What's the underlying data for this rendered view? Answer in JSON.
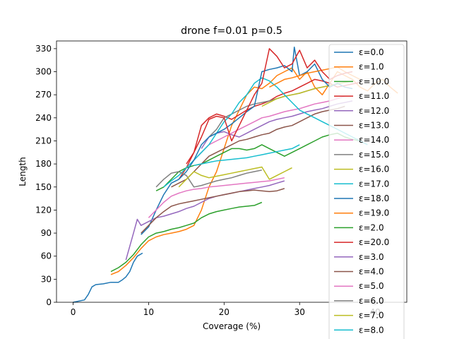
{
  "chart_data": {
    "type": "line",
    "title": "drone f=0.01 p=0.5",
    "xlabel": "Coverage (%)",
    "ylabel": "Length",
    "xlim": [
      -2.2,
      44.2
    ],
    "ylim": [
      0,
      340
    ],
    "xticks": [
      0,
      10,
      20,
      30,
      40
    ],
    "yticks": [
      0,
      30,
      60,
      90,
      120,
      150,
      180,
      210,
      240,
      270,
      300,
      330
    ],
    "grid": false,
    "legend_position": "upper-right",
    "series": [
      {
        "name": "ε=0.0",
        "color": "#1f77b4",
        "x": [
          0,
          1.5,
          2,
          2.5,
          3,
          4,
          5,
          6,
          6.5,
          7,
          7.5,
          8,
          8.5,
          9.2
        ],
        "y": [
          0,
          3,
          10,
          20,
          23,
          24,
          26,
          26,
          29,
          33,
          40,
          52,
          60,
          64
        ]
      },
      {
        "name": "ε=1.0",
        "color": "#ff7f0e",
        "x": [
          5,
          6,
          7,
          8,
          9,
          10,
          11,
          12,
          13,
          14,
          15,
          16,
          17,
          18,
          19,
          20,
          21,
          22,
          23,
          24,
          25,
          26,
          27,
          28,
          29,
          30,
          31,
          32,
          33,
          34,
          35,
          36,
          37,
          38,
          39,
          40,
          41,
          42,
          43
        ],
        "y": [
          36,
          40,
          48,
          58,
          70,
          80,
          85,
          88,
          90,
          92,
          95,
          100,
          120,
          150,
          170,
          200,
          230,
          250,
          270,
          280,
          278,
          285,
          295,
          300,
          305,
          290,
          300,
          280,
          270,
          285,
          300,
          295,
          290,
          280,
          275,
          285,
          290,
          280,
          272
        ]
      },
      {
        "name": "ε=10.0",
        "color": "#2ca02c",
        "x": [
          11,
          12,
          13,
          14,
          15,
          16,
          17,
          18,
          19,
          20,
          21,
          22,
          23,
          24,
          25,
          26,
          27,
          28,
          29,
          30,
          31,
          32,
          33,
          34,
          35,
          36,
          37,
          38
        ],
        "y": [
          145,
          150,
          160,
          170,
          175,
          178,
          180,
          185,
          190,
          195,
          200,
          200,
          198,
          200,
          205,
          200,
          195,
          190,
          195,
          200,
          205,
          210,
          215,
          218,
          220,
          215,
          212,
          210
        ]
      },
      {
        "name": "ε=11.0",
        "color": "#d62728",
        "x": [
          14,
          15,
          16,
          17,
          18,
          19,
          20,
          21,
          22,
          23,
          24,
          25,
          26,
          27,
          28,
          29,
          30,
          31,
          32,
          33,
          34,
          35,
          36,
          37,
          38
        ],
        "y": [
          160,
          175,
          195,
          230,
          240,
          245,
          242,
          238,
          244,
          250,
          255,
          258,
          262,
          268,
          272,
          275,
          280,
          285,
          290,
          288,
          285,
          280,
          282,
          284,
          286
        ]
      },
      {
        "name": "ε=12.0",
        "color": "#9467bd",
        "x": [
          17,
          18,
          19,
          20,
          21,
          22,
          23,
          24,
          25,
          26,
          27,
          28,
          29,
          30,
          31,
          32,
          33,
          34,
          35,
          36,
          37
        ],
        "y": [
          200,
          215,
          220,
          222,
          218,
          215,
          220,
          225,
          230,
          235,
          238,
          240,
          242,
          245,
          248,
          250,
          252,
          255,
          258,
          260,
          262
        ]
      },
      {
        "name": "ε=13.0",
        "color": "#8c564b",
        "x": [
          13,
          14,
          15,
          16,
          17,
          18,
          19,
          20,
          21,
          22,
          23,
          24,
          25,
          26,
          27,
          28,
          29,
          30,
          31,
          32,
          33,
          34,
          35,
          36
        ],
        "y": [
          150,
          155,
          160,
          170,
          180,
          190,
          195,
          200,
          205,
          210,
          212,
          215,
          218,
          220,
          225,
          228,
          230,
          235,
          240,
          245,
          248,
          250,
          252,
          255
        ]
      },
      {
        "name": "ε=14.0",
        "color": "#e377c2",
        "x": [
          16,
          17,
          18,
          19,
          20,
          21,
          22,
          23,
          24,
          25,
          26,
          27,
          28,
          29,
          30,
          31,
          32,
          33,
          34,
          35,
          36
        ],
        "y": [
          185,
          195,
          205,
          210,
          215,
          220,
          225,
          230,
          235,
          240,
          242,
          245,
          248,
          250,
          252,
          255,
          258,
          260,
          262,
          265,
          268
        ]
      },
      {
        "name": "ε=15.0",
        "color": "#7f7f7f",
        "x": [
          18,
          19,
          20,
          21,
          22,
          23,
          24,
          25,
          26,
          27,
          28,
          29,
          30,
          31,
          32,
          33,
          34,
          35,
          36
        ],
        "y": [
          215,
          225,
          240,
          245,
          250,
          255,
          258,
          260,
          262,
          265,
          268,
          270,
          272,
          275,
          278,
          280,
          282,
          284,
          286
        ]
      },
      {
        "name": "ε=16.0",
        "color": "#bcbd22",
        "x": [
          25,
          26,
          27,
          28,
          29,
          30,
          31,
          32,
          33,
          34,
          35,
          36,
          37
        ],
        "y": [
          255,
          260,
          265,
          268,
          270,
          272,
          275,
          278,
          280,
          282,
          284,
          286,
          288
        ]
      },
      {
        "name": "ε=17.0",
        "color": "#17becf",
        "x": [
          12,
          13,
          14,
          15,
          16,
          17,
          18,
          19,
          20,
          21,
          22,
          23,
          24,
          25,
          26,
          27,
          28,
          29,
          30,
          31,
          32,
          33,
          34,
          35,
          36,
          37,
          38,
          39
        ],
        "y": [
          150,
          158,
          165,
          175,
          185,
          195,
          205,
          220,
          235,
          245,
          260,
          270,
          285,
          292,
          288,
          280,
          270,
          260,
          250,
          245,
          240,
          235,
          230,
          225,
          220,
          215,
          210,
          205
        ]
      },
      {
        "name": "ε=18.0",
        "color": "#1f77b4",
        "x": [
          9,
          10,
          11,
          12,
          13,
          14,
          15,
          16,
          17,
          18,
          19,
          20,
          21,
          22,
          23,
          24,
          25,
          26,
          27,
          28,
          29,
          29.3,
          30,
          31,
          32,
          33,
          34,
          35,
          36,
          37
        ],
        "y": [
          88,
          98,
          120,
          140,
          155,
          160,
          170,
          185,
          205,
          215,
          220,
          225,
          232,
          240,
          248,
          255,
          300,
          303,
          305,
          308,
          300,
          332,
          295,
          300,
          310,
          290,
          280,
          285,
          280,
          278
        ]
      },
      {
        "name": "ε=19.0",
        "color": "#ff7f0e",
        "x": [
          26,
          27,
          28,
          29,
          30,
          31,
          32,
          33,
          34,
          35,
          36,
          37,
          38
        ],
        "y": [
          280,
          285,
          290,
          292,
          295,
          298,
          300,
          302,
          304,
          306,
          300,
          295,
          290
        ]
      },
      {
        "name": "ε=2.0",
        "color": "#2ca02c",
        "x": [
          5,
          6,
          7,
          8,
          9,
          10,
          11,
          12,
          13,
          14,
          15,
          16,
          17,
          18,
          19,
          20,
          21,
          22,
          23,
          24,
          25
        ],
        "y": [
          40,
          45,
          52,
          62,
          75,
          85,
          90,
          92,
          95,
          97,
          100,
          103,
          110,
          115,
          118,
          120,
          122,
          124,
          125,
          126,
          130
        ]
      },
      {
        "name": "ε=20.0",
        "color": "#d62728",
        "x": [
          15,
          16,
          17,
          18,
          19,
          20,
          21,
          22,
          23,
          24,
          25,
          26,
          27,
          28,
          29,
          30,
          31,
          32,
          33,
          34,
          35,
          36,
          37
        ],
        "y": [
          180,
          195,
          215,
          238,
          242,
          240,
          210,
          230,
          250,
          270,
          285,
          330,
          320,
          305,
          310,
          328,
          305,
          315,
          300,
          290,
          295,
          298,
          300
        ]
      },
      {
        "name": "ε=3.0",
        "color": "#9467bd",
        "x": [
          7,
          8,
          8.5,
          9,
          10,
          11,
          12,
          13,
          14,
          15,
          16,
          17,
          18,
          19,
          20,
          21,
          22,
          23,
          24,
          25,
          26,
          27,
          28
        ],
        "y": [
          55,
          90,
          108,
          100,
          105,
          110,
          112,
          115,
          118,
          122,
          125,
          130,
          135,
          138,
          140,
          142,
          144,
          146,
          148,
          150,
          152,
          155,
          158
        ]
      },
      {
        "name": "ε=4.0",
        "color": "#8c564b",
        "x": [
          9,
          10,
          11,
          12,
          13,
          14,
          15,
          16,
          17,
          18,
          19,
          20,
          21,
          22,
          23,
          24,
          25,
          26,
          27,
          28
        ],
        "y": [
          90,
          100,
          110,
          118,
          125,
          128,
          130,
          132,
          134,
          136,
          138,
          140,
          142,
          144,
          145,
          146,
          145,
          144,
          145,
          148
        ]
      },
      {
        "name": "ε=5.0",
        "color": "#e377c2",
        "x": [
          10,
          11,
          12,
          13,
          14,
          15,
          16,
          17,
          18,
          19,
          20,
          21,
          22,
          23,
          24,
          25,
          26,
          27,
          28
        ],
        "y": [
          110,
          120,
          130,
          138,
          142,
          145,
          147,
          148,
          150,
          151,
          152,
          153,
          154,
          155,
          156,
          157,
          158,
          160,
          162
        ]
      },
      {
        "name": "ε=6.0",
        "color": "#7f7f7f",
        "x": [
          11,
          12,
          13,
          14,
          15,
          16,
          17,
          18,
          19,
          20,
          21,
          22,
          23,
          24,
          25
        ],
        "y": [
          150,
          160,
          168,
          170,
          165,
          150,
          152,
          155,
          158,
          160,
          162,
          165,
          168,
          170,
          172
        ]
      },
      {
        "name": "ε=7.0",
        "color": "#bcbd22",
        "x": [
          14,
          15,
          16,
          17,
          18,
          19,
          20,
          21,
          22,
          23,
          24,
          25,
          26,
          27,
          28,
          29
        ],
        "y": [
          150,
          160,
          170,
          165,
          162,
          164,
          166,
          168,
          170,
          172,
          174,
          176,
          160,
          165,
          170,
          175
        ]
      },
      {
        "name": "ε=8.0",
        "color": "#17becf",
        "x": [
          16,
          17,
          18,
          19,
          20,
          21,
          22,
          23,
          24,
          25,
          26,
          27,
          28,
          29,
          30
        ],
        "y": [
          178,
          180,
          182,
          184,
          185,
          186,
          187,
          188,
          190,
          192,
          194,
          196,
          198,
          200,
          205
        ]
      }
    ]
  }
}
